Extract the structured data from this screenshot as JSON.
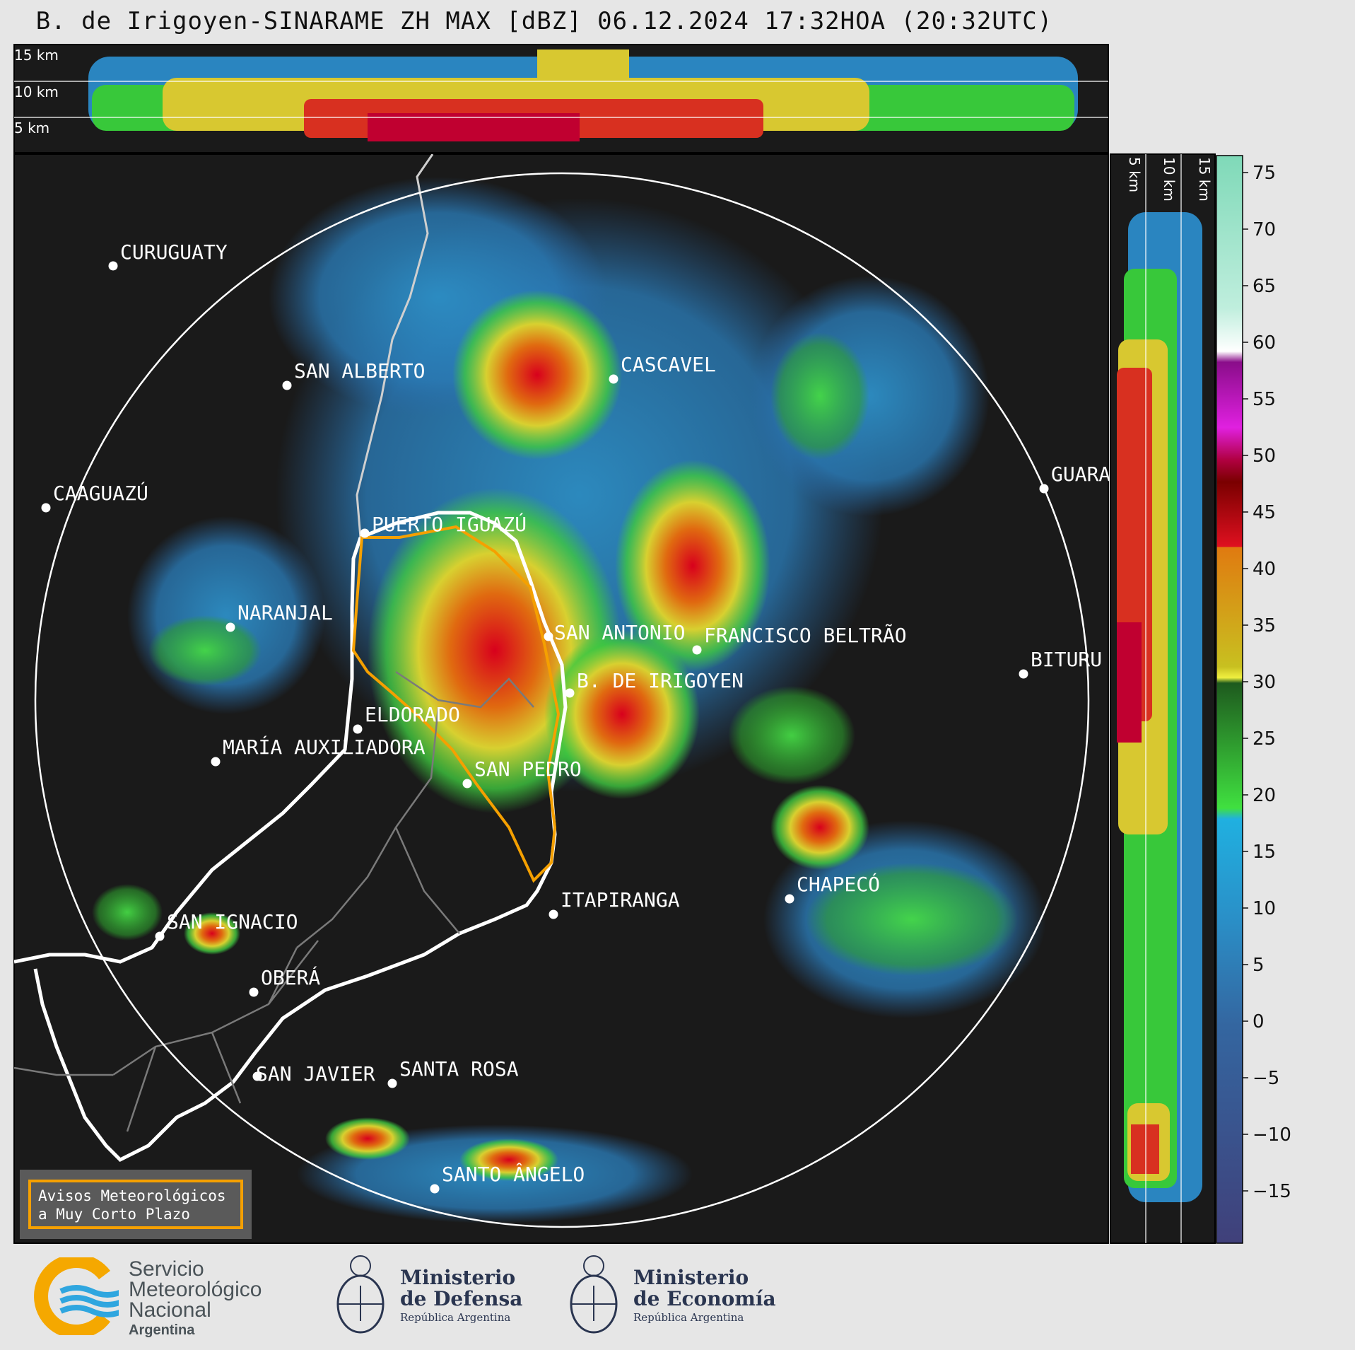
{
  "title": "B. de Irigoyen-SINARAME ZH MAX [dBZ] 06.12.2024 17:32HOA (20:32UTC)",
  "top_panel_labels": [
    "15 km",
    "10 km",
    "5 km"
  ],
  "side_panel_labels": [
    "5 km",
    "10 km",
    "15 km"
  ],
  "colorbar": {
    "ticks": [
      "75",
      "70",
      "65",
      "60",
      "55",
      "50",
      "45",
      "40",
      "35",
      "30",
      "25",
      "20",
      "15",
      "10",
      "5",
      "0",
      "−5",
      "−10",
      "−15"
    ]
  },
  "cities": [
    {
      "name": "CURUGUATY"
    },
    {
      "name": "SAN ALBERTO"
    },
    {
      "name": "CAAGUAZÚ"
    },
    {
      "name": "CASCAVEL"
    },
    {
      "name": "GUARA"
    },
    {
      "name": "PUERTO IGUAZÚ"
    },
    {
      "name": "NARANJAL"
    },
    {
      "name": "SAN ANTONIO"
    },
    {
      "name": "FRANCISCO BELTRÃO"
    },
    {
      "name": "BITURU"
    },
    {
      "name": "B. DE IRIGOYEN"
    },
    {
      "name": "ELDORADO"
    },
    {
      "name": "MARÍA AUXILIADORA"
    },
    {
      "name": "SAN PEDRO"
    },
    {
      "name": "CHAPECÓ"
    },
    {
      "name": "ITAPIRANGA"
    },
    {
      "name": "SAN IGNACIO"
    },
    {
      "name": "OBERÁ"
    },
    {
      "name": "SAN JAVIER"
    },
    {
      "name": "SANTA ROSA"
    },
    {
      "name": "SANTO ÂNGELO"
    }
  ],
  "notice": {
    "line1": "Avisos Meteorológicos",
    "line2": "a Muy Corto Plazo"
  },
  "logos": {
    "smn": {
      "line1": "Servicio",
      "line2": "Meteorológico",
      "line3": "Nacional",
      "line4": "Argentina"
    },
    "defensa": {
      "line1": "Ministerio",
      "line2": "de Defensa",
      "line3": "República Argentina"
    },
    "economia": {
      "line1": "Ministerio",
      "line2": "de Economía",
      "line3": "República Argentina"
    }
  },
  "colors": {
    "background": "#1a1a1a",
    "frame": "#e6e6e6",
    "province_outline": "#f5a000",
    "border": "#ffffff"
  }
}
